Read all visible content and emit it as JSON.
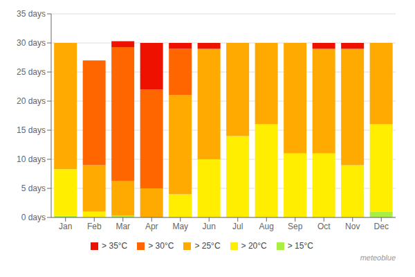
{
  "chart_data": {
    "type": "bar",
    "stacked": true,
    "grid": true,
    "legend": "bottom",
    "categories": [
      "Jan",
      "Feb",
      "Mar",
      "Apr",
      "May",
      "Jun",
      "Jul",
      "Aug",
      "Sep",
      "Oct",
      "Nov",
      "Dec"
    ],
    "series": [
      {
        "name": "> 15°C",
        "color": "#aaee44",
        "values": [
          0.3,
          0,
          0.3,
          0,
          0,
          0,
          0,
          0,
          0,
          0,
          0,
          1.0
        ]
      },
      {
        "name": "> 20°C",
        "color": "#ffee00",
        "values": [
          8.0,
          1.0,
          0,
          0,
          4.0,
          10,
          14,
          16,
          11,
          11,
          9,
          15
        ]
      },
      {
        "name": "> 25°C",
        "color": "#ffaa00",
        "values": [
          21.7,
          8,
          6,
          5,
          17,
          19,
          16,
          14,
          19,
          18,
          20,
          14
        ]
      },
      {
        "name": "> 30°C",
        "color": "#ff6600",
        "values": [
          0,
          18,
          23,
          17,
          8,
          0,
          0,
          0,
          0,
          0,
          0,
          0
        ]
      },
      {
        "name": "> 35°C",
        "color": "#ee1100",
        "values": [
          0,
          0,
          1,
          8,
          1,
          1,
          0,
          0,
          0,
          1,
          1,
          0
        ]
      }
    ],
    "ylim": [
      0,
      35
    ],
    "yticks": [
      {
        "value": 0,
        "label": "0 days"
      },
      {
        "value": 5,
        "label": "5 days"
      },
      {
        "value": 10,
        "label": "10 days"
      },
      {
        "value": 15,
        "label": "15 days"
      },
      {
        "value": 20,
        "label": "20 days"
      },
      {
        "value": 25,
        "label": "25 days"
      },
      {
        "value": 30,
        "label": "30 days"
      },
      {
        "value": 35,
        "label": "35 days"
      }
    ],
    "annotations": [
      "meteoblue"
    ]
  }
}
